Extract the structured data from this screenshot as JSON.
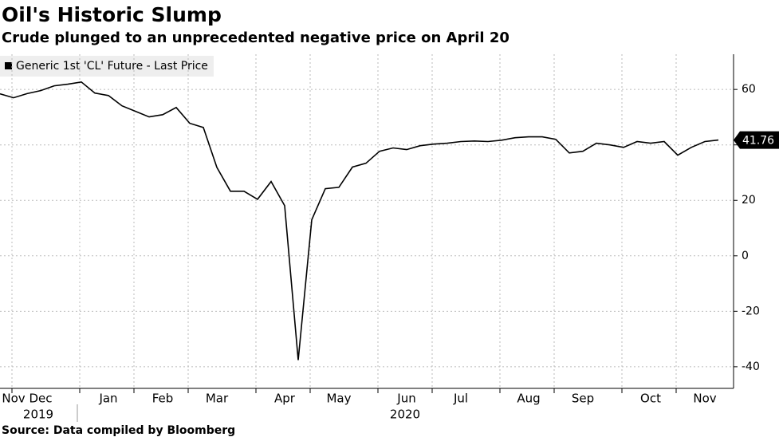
{
  "chart_data": {
    "type": "line",
    "title": "Oil's Historic Slump",
    "subtitle": "Crude plunged to an unprecedented negative price on April 20",
    "source": "Source: Data compiled by Bloomberg",
    "categories": [
      null,
      "Nov",
      null,
      "Dec",
      null,
      null,
      null,
      null,
      "Jan",
      null,
      null,
      null,
      "Feb",
      null,
      null,
      null,
      "Mar",
      null,
      null,
      null,
      null,
      "Apr",
      null,
      null,
      null,
      "May",
      null,
      null,
      null,
      null,
      "Jun",
      null,
      null,
      null,
      "Jul",
      null,
      null,
      null,
      null,
      "Aug",
      null,
      null,
      null,
      "Sep",
      null,
      null,
      null,
      null,
      "Oct",
      null,
      null,
      null,
      "Nov",
      null
    ],
    "years": [
      "2019",
      "2020"
    ],
    "series": [
      {
        "name": "Generic 1st 'CL' Future - Last Price",
        "color": "#000000",
        "values": [
          58.4,
          57,
          58.5,
          59.6,
          61.3,
          61.9,
          62.7,
          58.7,
          57.8,
          54.1,
          52.1,
          50.1,
          50.9,
          53.5,
          47.8,
          46.3,
          31.9,
          23.3,
          23.3,
          20.4,
          26.8,
          18.1,
          -37.63,
          13,
          24.2,
          24.7,
          32,
          33.4,
          37.7,
          38.9,
          38.3,
          39.7,
          40.3,
          40.6,
          41.2,
          41.4,
          41.2,
          41.7,
          42.6,
          42.9,
          42.9,
          42,
          37.1,
          37.7,
          40.6,
          40,
          39.1,
          41.2,
          40.6,
          41.2,
          36.3,
          39.1,
          41.2,
          41.76
        ],
        "last_value_label": "41.76"
      }
    ],
    "ylim": [
      -47.8,
      72.7
    ],
    "yticks": [
      -40,
      -20,
      0,
      20,
      40,
      60
    ],
    "grid": true
  }
}
